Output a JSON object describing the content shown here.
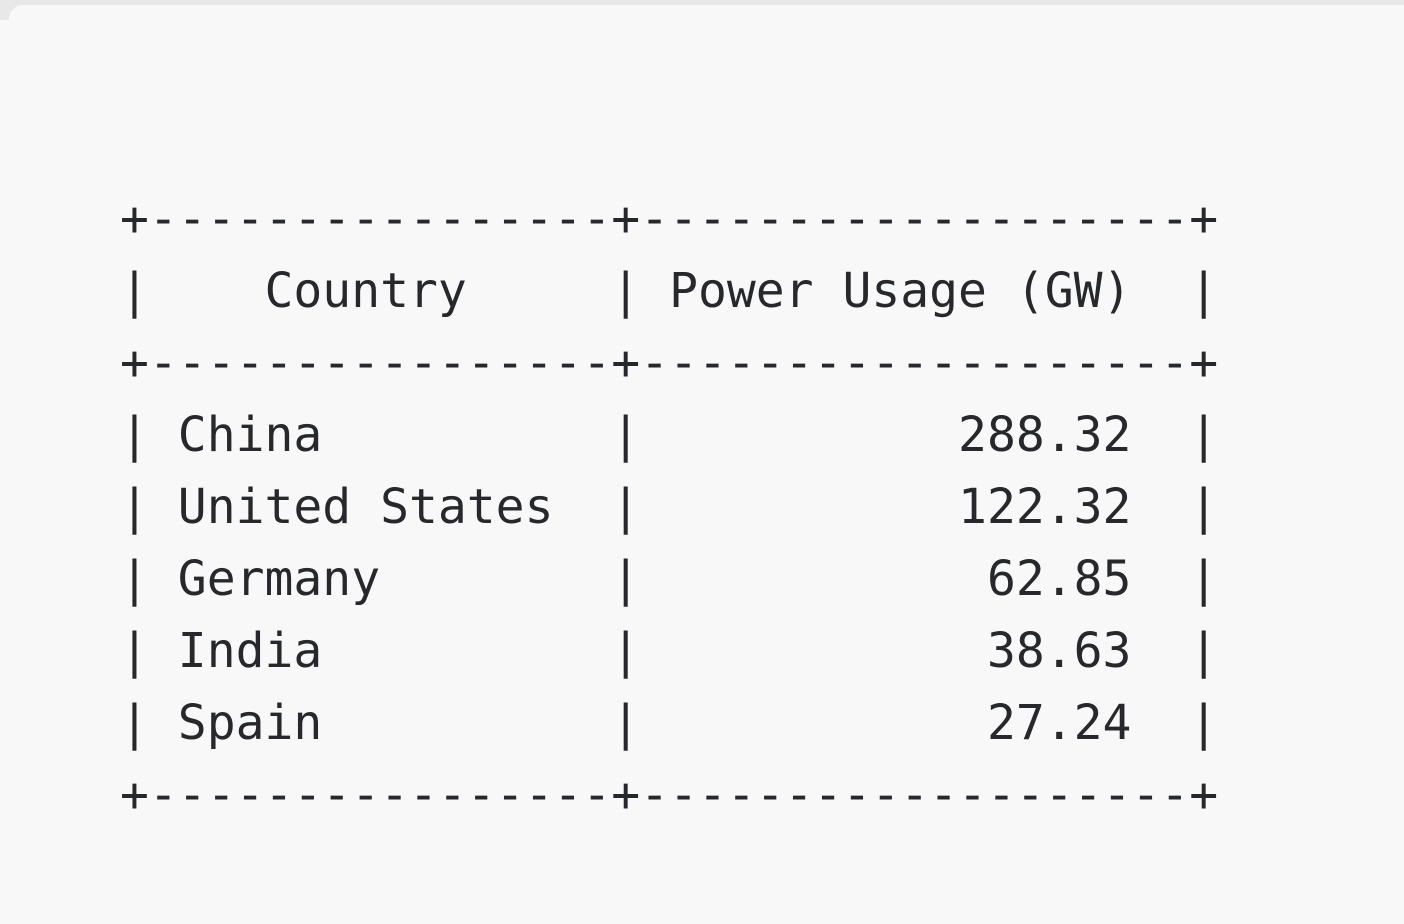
{
  "window": {
    "top_strip_color": "#e8e8e8",
    "card_background": "#f8f8f8",
    "text_color": "#26282b"
  },
  "terminal_table": {
    "columns": [
      "Country",
      "Power Usage (GW)"
    ],
    "rows": [
      {
        "country": "China",
        "power_usage_gw": "288.32"
      },
      {
        "country": "United States",
        "power_usage_gw": "122.32"
      },
      {
        "country": "Germany",
        "power_usage_gw": "62.85"
      },
      {
        "country": "India",
        "power_usage_gw": "38.63"
      },
      {
        "country": "Spain",
        "power_usage_gw": "27.24"
      }
    ],
    "ascii_lines": [
      "+----------------+-------------------+",
      "|    Country     | Power Usage (GW)  |",
      "+----------------+-------------------+",
      "| China          |           288.32  |",
      "| United States  |           122.32  |",
      "| Germany        |            62.85  |",
      "| India          |            38.63  |",
      "| Spain          |            27.24  |",
      "+----------------+-------------------+"
    ]
  }
}
